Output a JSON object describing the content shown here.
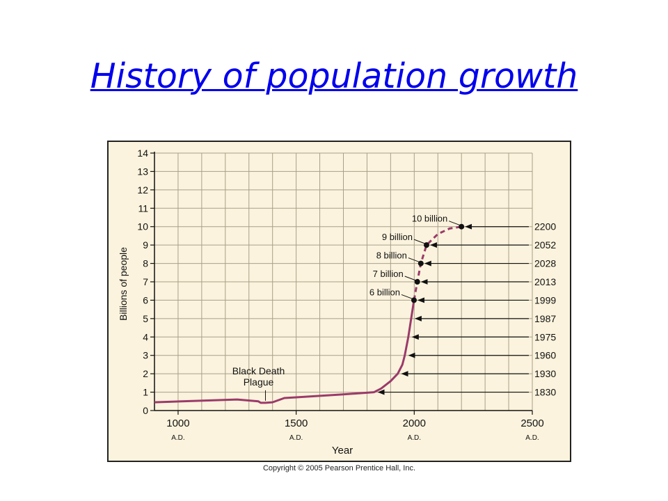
{
  "slide": {
    "title": "History of population growth",
    "copyright": "Copyright © 2005 Pearson Prentice Hall, Inc."
  },
  "colors": {
    "panel_bg": "#fbf3dd",
    "panel_border": "#222222",
    "grid": "#a89f88",
    "curve": "#9b3a6a",
    "title_link": "#0000ee"
  },
  "chart_data": {
    "type": "line",
    "xlabel": "Year",
    "ylabel": "Billions of people",
    "xlim": [
      900,
      2500
    ],
    "ylim": [
      0,
      14
    ],
    "grid": true,
    "x_ticks": [
      {
        "value": 1000,
        "label": "1000",
        "sub": "A.D."
      },
      {
        "value": 1500,
        "label": "1500",
        "sub": "A.D."
      },
      {
        "value": 2000,
        "label": "2000",
        "sub": "A.D."
      },
      {
        "value": 2500,
        "label": "2500",
        "sub": "A.D."
      }
    ],
    "y_ticks": [
      0,
      1,
      2,
      3,
      4,
      5,
      6,
      7,
      8,
      9,
      10,
      11,
      12,
      13,
      14
    ],
    "series": [
      {
        "style": "solid",
        "x": [
          900,
          1250,
          1340,
          1350,
          1370,
          1400,
          1450,
          1500,
          1600,
          1700,
          1800,
          1830,
          1860,
          1900,
          1930,
          1950,
          1960,
          1975,
          1987,
          1999
        ],
        "y": [
          0.45,
          0.6,
          0.5,
          0.42,
          0.42,
          0.45,
          0.68,
          0.72,
          0.8,
          0.88,
          0.97,
          1.0,
          1.2,
          1.6,
          2.0,
          2.5,
          3.0,
          4.0,
          5.0,
          6.0
        ]
      },
      {
        "style": "dashed",
        "x": [
          1999,
          2013,
          2028,
          2052,
          2100,
          2150,
          2200
        ],
        "y": [
          6.0,
          7.0,
          8.0,
          9.0,
          9.6,
          9.9,
          10.0
        ]
      }
    ],
    "milestones": [
      {
        "x": 1999,
        "y": 6,
        "label": "6 billion"
      },
      {
        "x": 2013,
        "y": 7,
        "label": "7 billion"
      },
      {
        "x": 2028,
        "y": 8,
        "label": "8 billion"
      },
      {
        "x": 2052,
        "y": 9,
        "label": "9 billion"
      },
      {
        "x": 2200,
        "y": 10,
        "label": "10 billion"
      }
    ],
    "year_arrows": [
      {
        "year": "1830",
        "y": 1,
        "x": 1830
      },
      {
        "year": "1930",
        "y": 2,
        "x": 1930
      },
      {
        "year": "1960",
        "y": 3,
        "x": 1960
      },
      {
        "year": "1975",
        "y": 4,
        "x": 1975
      },
      {
        "year": "1987",
        "y": 5,
        "x": 1987
      },
      {
        "year": "1999",
        "y": 6,
        "x": 1999
      },
      {
        "year": "2013",
        "y": 7,
        "x": 2013
      },
      {
        "year": "2028",
        "y": 8,
        "x": 2028
      },
      {
        "year": "2052",
        "y": 9,
        "x": 2052
      },
      {
        "year": "2200",
        "y": 10,
        "x": 2200
      }
    ],
    "annotations": [
      {
        "text": [
          "Black Death",
          "Plague"
        ],
        "x": 1370,
        "y": 0.42
      }
    ]
  }
}
